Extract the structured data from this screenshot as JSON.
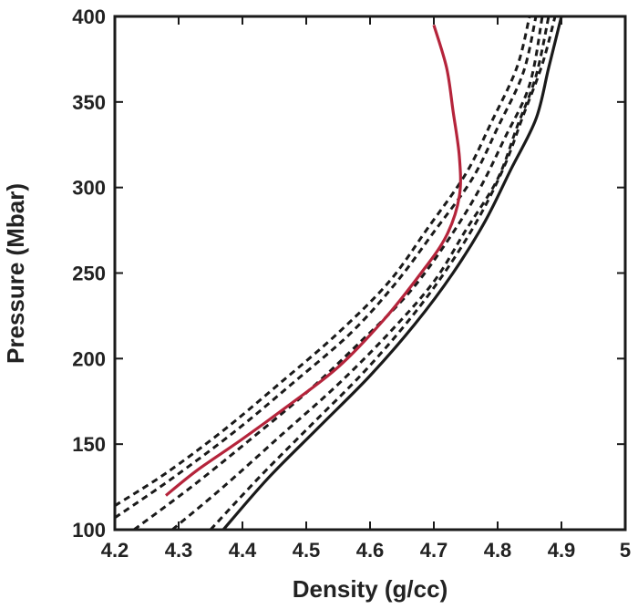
{
  "chart_data": {
    "type": "line",
    "title": "",
    "xlabel": "Density (g/cc)",
    "ylabel": "Pressure (Mbar)",
    "xlim": [
      4.2,
      5.0
    ],
    "ylim": [
      100,
      400
    ],
    "xticks": [
      "4.2",
      "4.3",
      "4.4",
      "4.5",
      "4.6",
      "4.7",
      "4.8",
      "4.9",
      "5"
    ],
    "yticks": [
      "100",
      "150",
      "200",
      "250",
      "300",
      "350",
      "400"
    ],
    "grid": false,
    "legend": "none",
    "series": [
      {
        "style": "solid",
        "color": "#1a1a1a",
        "points": [
          [
            4.37,
            100
          ],
          [
            4.44,
            130
          ],
          [
            4.52,
            160
          ],
          [
            4.6,
            190
          ],
          [
            4.67,
            220
          ],
          [
            4.73,
            250
          ],
          [
            4.78,
            280
          ],
          [
            4.82,
            310
          ],
          [
            4.86,
            340
          ],
          [
            4.88,
            370
          ],
          [
            4.9,
            400
          ]
        ]
      },
      {
        "style": "dashed",
        "color": "#1a1a1a",
        "points": [
          [
            4.35,
            100
          ],
          [
            4.43,
            132
          ],
          [
            4.51,
            162
          ],
          [
            4.59,
            192
          ],
          [
            4.66,
            222
          ],
          [
            4.72,
            252
          ],
          [
            4.77,
            282
          ],
          [
            4.81,
            312
          ],
          [
            4.84,
            342
          ],
          [
            4.87,
            372
          ],
          [
            4.89,
            400
          ]
        ]
      },
      {
        "style": "dashed",
        "color": "#1a1a1a",
        "points": [
          [
            4.29,
            100
          ],
          [
            4.37,
            125
          ],
          [
            4.46,
            155
          ],
          [
            4.55,
            185
          ],
          [
            4.63,
            215
          ],
          [
            4.7,
            245
          ],
          [
            4.75,
            275
          ],
          [
            4.8,
            305
          ],
          [
            4.83,
            335
          ],
          [
            4.86,
            365
          ],
          [
            4.88,
            400
          ]
        ]
      },
      {
        "style": "dashed",
        "color": "#1a1a1a",
        "points": [
          [
            4.23,
            100
          ],
          [
            4.32,
            125
          ],
          [
            4.41,
            152
          ],
          [
            4.5,
            180
          ],
          [
            4.58,
            208
          ],
          [
            4.66,
            238
          ],
          [
            4.72,
            268
          ],
          [
            4.77,
            298
          ],
          [
            4.81,
            328
          ],
          [
            4.85,
            360
          ],
          [
            4.87,
            400
          ]
        ]
      },
      {
        "style": "dashed",
        "color": "#1a1a1a",
        "points": [
          [
            4.2,
            107
          ],
          [
            4.29,
            130
          ],
          [
            4.39,
            158
          ],
          [
            4.48,
            186
          ],
          [
            4.57,
            215
          ],
          [
            4.64,
            244
          ],
          [
            4.7,
            274
          ],
          [
            4.76,
            305
          ],
          [
            4.8,
            335
          ],
          [
            4.84,
            367
          ],
          [
            4.86,
            400
          ]
        ]
      },
      {
        "style": "dashed",
        "color": "#1a1a1a",
        "points": [
          [
            4.2,
            114
          ],
          [
            4.28,
            133
          ],
          [
            4.37,
            158
          ],
          [
            4.46,
            186
          ],
          [
            4.55,
            215
          ],
          [
            4.63,
            245
          ],
          [
            4.69,
            276
          ],
          [
            4.75,
            308
          ],
          [
            4.79,
            338
          ],
          [
            4.83,
            370
          ],
          [
            4.85,
            400
          ]
        ]
      },
      {
        "style": "solid",
        "color": "#b5243b",
        "points": [
          [
            4.28,
            120
          ],
          [
            4.33,
            135
          ],
          [
            4.4,
            153
          ],
          [
            4.47,
            172
          ],
          [
            4.55,
            195
          ],
          [
            4.62,
            222
          ],
          [
            4.68,
            250
          ],
          [
            4.72,
            272
          ],
          [
            4.74,
            295
          ],
          [
            4.74,
            318
          ],
          [
            4.73,
            345
          ],
          [
            4.72,
            370
          ],
          [
            4.7,
            395
          ]
        ]
      }
    ]
  }
}
